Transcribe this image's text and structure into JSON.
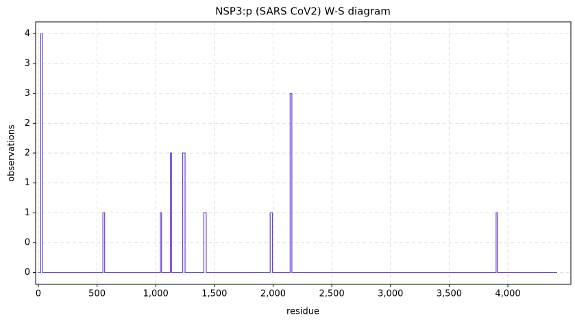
{
  "chart_data": {
    "type": "line",
    "title": "NSP3:p (SARS CoV2) W-S diagram",
    "x_label": "residue",
    "y_label": "observations",
    "xlim": [
      -23,
      4537
    ],
    "ylim": [
      -0.2,
      4.2
    ],
    "xticks": [
      0,
      500,
      {
        "value": 1000,
        "label": "1,000"
      },
      {
        "value": 1500,
        "label": "1,500"
      },
      {
        "value": 2000,
        "label": "2,000"
      },
      {
        "value": 2500,
        "label": "2,500"
      },
      {
        "value": 3000,
        "label": "3,000"
      },
      {
        "value": 3500,
        "label": "3,500"
      },
      {
        "value": 4000,
        "label": "4,000"
      }
    ],
    "yticks": [
      0,
      {
        "value": 0.5,
        "label": "0"
      },
      1,
      {
        "value": 1.5,
        "label": "1"
      },
      2,
      {
        "value": 2.5,
        "label": "2"
      },
      3,
      {
        "value": 3.5,
        "label": "3"
      },
      4
    ],
    "grid": true,
    "x": [
      0,
      20,
      20,
      35,
      35,
      550,
      550,
      565,
      565,
      1040,
      1040,
      1050,
      1050,
      1125,
      1125,
      1135,
      1135,
      1230,
      1230,
      1250,
      1250,
      1410,
      1410,
      1430,
      1430,
      1975,
      1975,
      1995,
      1995,
      2145,
      2145,
      2160,
      2160,
      3900,
      3900,
      3910,
      3910,
      4420
    ],
    "series": [
      {
        "color": "#6a3fd0",
        "values": [
          0,
          0,
          4,
          4,
          0,
          0,
          1,
          1,
          0,
          0,
          1,
          1,
          0,
          0,
          2,
          2,
          0,
          0,
          2,
          2,
          0,
          0,
          1,
          1,
          0,
          0,
          1,
          1,
          0,
          0,
          3,
          3,
          0,
          0,
          1,
          1,
          0,
          0
        ]
      }
    ]
  }
}
